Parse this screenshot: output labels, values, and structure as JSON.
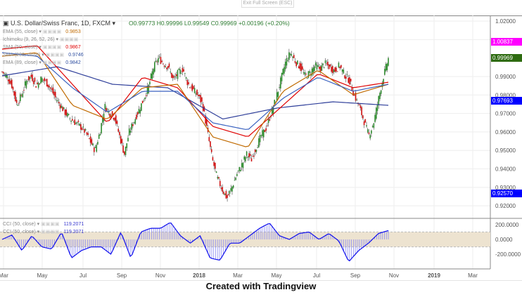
{
  "header": {
    "exit_fullscreen": "Exit Full Screen (ESC)",
    "symbol": "U.S. Dollar/Swiss Franc, 1D, FXCM",
    "ohlc": "O0.99773  H0.99996  L0.99549  C0.99969  +0.00196 (+0.20%)"
  },
  "legend": [
    {
      "label": "EMA (55, close)",
      "value": "0.9853",
      "color": "#c06a00"
    },
    {
      "label": "Ichimoku (9, 26, 52, 26)",
      "value": "",
      "color": "#888"
    },
    {
      "label": "SMA (50, close)",
      "value": "0.9867",
      "color": "#e00000"
    },
    {
      "label": "SMA (200, close)",
      "value": "0.9746",
      "color": "#2f4fa0"
    },
    {
      "label": "EMA (89, close)",
      "value": "0.9842",
      "color": "#2f4fa0"
    }
  ],
  "cci_legend": [
    {
      "label": "CCI (50, close)",
      "value": "119.2071"
    },
    {
      "label": "CCI (50, close)",
      "value": "119.2071"
    }
  ],
  "price_tags": [
    {
      "value": "1.00837",
      "color": "#ff00ff"
    },
    {
      "value": "0.99969",
      "color": "#2e6b10"
    },
    {
      "value": "0.97693",
      "color": "#0000ff"
    },
    {
      "value": "0.92570",
      "color": "#0000ff"
    }
  ],
  "footer": "Created with Tradingview",
  "chart_data": {
    "type": "candlestick",
    "title": "U.S. Dollar/Swiss Franc, 1D, FXCM",
    "price_ticks": [
      "1.02000",
      "0.99000",
      "0.98000",
      "0.97000",
      "0.96000",
      "0.95000",
      "0.94000",
      "0.93000",
      "0.92000"
    ],
    "ylim": [
      0.918,
      1.022
    ],
    "x_ticks": [
      "Mar",
      "May",
      "Jul",
      "Sep",
      "Nov",
      "2018",
      "Mar",
      "May",
      "Jul",
      "Sep",
      "Nov",
      "2019",
      "Mar"
    ],
    "close": [
      0.9925,
      0.99,
      0.985,
      0.975,
      0.98,
      0.988,
      0.99,
      0.985,
      0.989,
      0.987,
      0.983,
      0.978,
      0.974,
      0.97,
      0.967,
      0.965,
      0.963,
      0.96,
      0.955,
      0.95,
      0.96,
      0.974,
      0.97,
      0.968,
      0.958,
      0.948,
      0.96,
      0.966,
      0.972,
      0.978,
      0.985,
      0.995,
      1.0,
      0.997,
      0.995,
      0.988,
      0.992,
      0.994,
      0.986,
      0.983,
      0.98,
      0.975,
      0.96,
      0.945,
      0.935,
      0.929,
      0.924,
      0.93,
      0.937,
      0.942,
      0.948,
      0.945,
      0.952,
      0.958,
      0.962,
      0.97,
      0.978,
      0.988,
      0.998,
      1.003,
      0.998,
      0.995,
      0.99,
      0.992,
      0.996,
      0.994,
      0.997,
      0.995,
      0.993,
      0.996,
      0.991,
      0.988,
      0.98,
      0.974,
      0.966,
      0.958,
      0.965,
      0.978,
      0.99,
      0.9997
    ],
    "ma_lines": [
      {
        "name": "SMA (200, close)",
        "color": "#2f3f9a",
        "values": [
          0.9904,
          0.9953,
          0.9858,
          0.9839,
          0.967,
          0.973,
          0.9763,
          0.9744
        ]
      },
      {
        "name": "SMA (50, close)",
        "color": "#e00000",
        "values": [
          1.0048,
          1.0067,
          0.9858,
          0.9649,
          0.9896,
          0.9839,
          0.963,
          0.9573,
          0.9744,
          0.9915,
          0.9839,
          0.9869
        ]
      },
      {
        "name": "EMA (55, close)",
        "color": "#c06a00",
        "values": [
          1.001,
          1.0029,
          0.9744,
          0.9668,
          0.9839,
          0.9858,
          0.9573,
          0.9516,
          0.982,
          0.9934,
          0.9801,
          0.9858
        ]
      },
      {
        "name": "EMA (89, close)",
        "color": "#3a62c0",
        "values": [
          1.0029,
          1.001,
          0.9839,
          0.9706,
          0.982,
          0.982,
          0.9649,
          0.9611,
          0.9782,
          0.9896,
          0.982,
          0.9858
        ]
      }
    ],
    "cci": {
      "ticks": [
        "200.0000",
        "0.0000",
        "-200.0000"
      ],
      "band": [
        -100,
        100
      ],
      "values": [
        0,
        60,
        -150,
        50,
        -100,
        -130,
        100,
        -250,
        -150,
        -100,
        -100,
        -200,
        100,
        -250,
        100,
        150,
        150,
        230,
        50,
        -50,
        50,
        -250,
        -280,
        -50,
        -50,
        50,
        150,
        220,
        50,
        0,
        80,
        100,
        0,
        80,
        -20,
        -300,
        -150,
        -50,
        80,
        119.2
      ]
    }
  }
}
